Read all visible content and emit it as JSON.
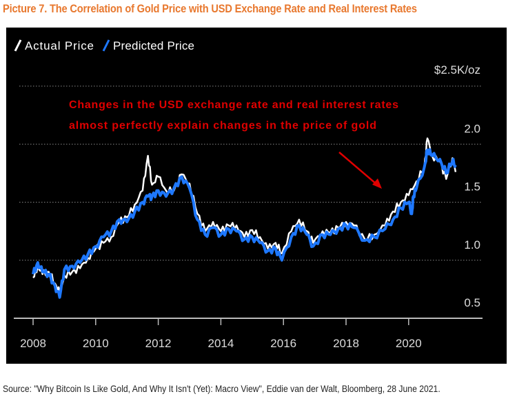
{
  "title": "Picture 7. The Correlation of Gold Price with USD Exchange Rate and Real Interest Rates",
  "source": "Source: \"Why Bitcoin Is Like Gold, And Why It Isn't (Yet): Macro View\", Eddie van der Walt, Bloomberg, 28 June 2021.",
  "chart_data": {
    "type": "line",
    "title": "",
    "unit_label": "$2.5K/oz",
    "annotation": [
      "Changes in the USD exchange rate and real interest rates",
      "almost perfectly explain changes in the price of gold"
    ],
    "annotation_color": "#E00000",
    "background": "#000000",
    "xlim": [
      2007.9,
      2021.8
    ],
    "ylim": [
      0.5,
      2.5
    ],
    "x_ticks": [
      "2008",
      "2010",
      "2012",
      "2014",
      "2016",
      "2018",
      "2020"
    ],
    "y_ticks": [
      "2.0",
      "1.5",
      "1.0",
      "0.5"
    ],
    "grid": true,
    "legend": "top-left",
    "series": [
      {
        "name": "Actual Price",
        "color": "#FFFFFF",
        "x": [
          2008.0,
          2008.15,
          2008.3,
          2008.5,
          2008.7,
          2008.85,
          2009.0,
          2009.25,
          2009.5,
          2009.75,
          2010.0,
          2010.25,
          2010.5,
          2010.75,
          2011.0,
          2011.25,
          2011.5,
          2011.67,
          2011.8,
          2012.0,
          2012.25,
          2012.5,
          2012.75,
          2013.0,
          2013.25,
          2013.5,
          2013.75,
          2014.0,
          2014.25,
          2014.5,
          2014.75,
          2015.0,
          2015.25,
          2015.5,
          2015.75,
          2015.95,
          2016.25,
          2016.5,
          2016.75,
          2016.95,
          2017.25,
          2017.5,
          2017.75,
          2018.0,
          2018.25,
          2018.6,
          2018.9,
          2019.25,
          2019.5,
          2019.75,
          2020.0,
          2020.25,
          2020.5,
          2020.6,
          2020.75,
          2021.0,
          2021.2,
          2021.4,
          2021.5
        ],
        "values": [
          0.85,
          0.95,
          0.88,
          0.9,
          0.8,
          0.72,
          0.87,
          0.9,
          0.93,
          1.02,
          1.1,
          1.15,
          1.2,
          1.33,
          1.37,
          1.48,
          1.6,
          1.9,
          1.65,
          1.72,
          1.6,
          1.6,
          1.74,
          1.66,
          1.4,
          1.25,
          1.33,
          1.25,
          1.3,
          1.3,
          1.2,
          1.26,
          1.2,
          1.1,
          1.15,
          1.06,
          1.25,
          1.35,
          1.25,
          1.15,
          1.25,
          1.24,
          1.28,
          1.33,
          1.3,
          1.18,
          1.22,
          1.3,
          1.42,
          1.5,
          1.56,
          1.68,
          1.8,
          2.05,
          1.9,
          1.85,
          1.7,
          1.88,
          1.76
        ]
      },
      {
        "name": "Predicted Price",
        "color": "#1E78FF",
        "x": [
          2008.0,
          2008.15,
          2008.3,
          2008.5,
          2008.7,
          2008.85,
          2009.0,
          2009.25,
          2009.5,
          2009.75,
          2010.0,
          2010.25,
          2010.5,
          2010.75,
          2011.0,
          2011.25,
          2011.5,
          2011.67,
          2011.8,
          2012.0,
          2012.25,
          2012.5,
          2012.75,
          2013.0,
          2013.25,
          2013.5,
          2013.75,
          2014.0,
          2014.25,
          2014.5,
          2014.75,
          2015.0,
          2015.25,
          2015.5,
          2015.75,
          2015.95,
          2016.25,
          2016.5,
          2016.75,
          2016.95,
          2017.25,
          2017.5,
          2017.75,
          2018.0,
          2018.25,
          2018.6,
          2018.9,
          2019.25,
          2019.5,
          2019.75,
          2020.0,
          2020.1,
          2020.15,
          2020.25,
          2020.5,
          2020.6,
          2020.75,
          2021.0,
          2021.2,
          2021.4,
          2021.5
        ],
        "values": [
          0.88,
          0.98,
          0.9,
          0.88,
          0.78,
          0.68,
          0.92,
          0.95,
          0.98,
          1.05,
          1.12,
          1.2,
          1.25,
          1.35,
          1.33,
          1.42,
          1.5,
          1.55,
          1.55,
          1.6,
          1.55,
          1.62,
          1.72,
          1.62,
          1.35,
          1.22,
          1.28,
          1.22,
          1.27,
          1.25,
          1.18,
          1.2,
          1.15,
          1.08,
          1.1,
          1.0,
          1.2,
          1.3,
          1.22,
          1.12,
          1.22,
          1.22,
          1.27,
          1.3,
          1.28,
          1.17,
          1.2,
          1.27,
          1.35,
          1.45,
          1.5,
          1.4,
          1.55,
          1.62,
          1.8,
          1.95,
          1.9,
          1.87,
          1.75,
          1.85,
          1.82
        ]
      }
    ]
  }
}
